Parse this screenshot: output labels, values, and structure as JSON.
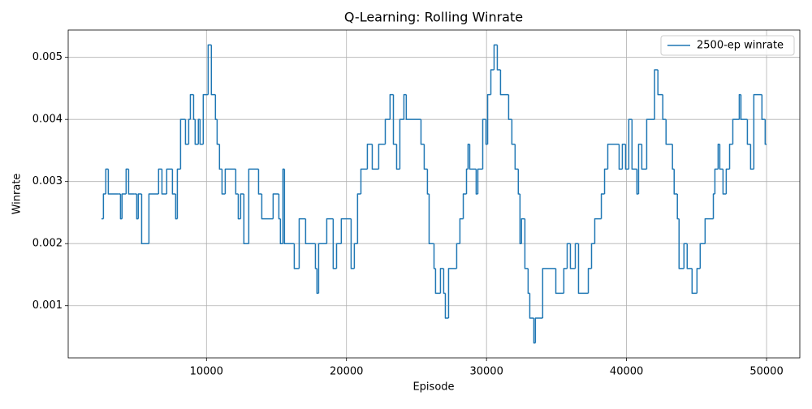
{
  "chart_data": {
    "type": "line",
    "step": "post",
    "title": "Q-Learning: Rolling Winrate",
    "xlabel": "Episode",
    "ylabel": "Winrate",
    "xlim": [
      125,
      52375
    ],
    "ylim": [
      0.00016,
      0.00544
    ],
    "xticks": [
      10000,
      20000,
      30000,
      40000,
      50000
    ],
    "yticks": [
      0.001,
      0.002,
      0.003,
      0.004,
      0.005
    ],
    "grid": true,
    "legend": "upper right",
    "series": [
      {
        "name": "2500-ep winrate",
        "color": "#1f77b4",
        "x": [
          2500,
          2640,
          2810,
          2990,
          3680,
          3860,
          3970,
          4260,
          4440,
          4840,
          5020,
          5130,
          5370,
          5890,
          6580,
          6820,
          7160,
          7570,
          7800,
          7920,
          8150,
          8500,
          8730,
          8850,
          9080,
          9190,
          9420,
          9540,
          9770,
          10120,
          10350,
          10640,
          10760,
          10930,
          11110,
          11340,
          12090,
          12270,
          12440,
          12670,
          13020,
          13720,
          13950,
          14760,
          15170,
          15280,
          15460,
          15570,
          16270,
          16620,
          17080,
          17780,
          17890,
          18010,
          18590,
          19050,
          19290,
          19630,
          20330,
          20560,
          20790,
          21030,
          21490,
          21840,
          22300,
          22770,
          23110,
          23350,
          23580,
          23810,
          24100,
          24270,
          25320,
          25550,
          25780,
          25900,
          26250,
          26360,
          26710,
          26940,
          27060,
          27290,
          27870,
          28100,
          28340,
          28570,
          28680,
          28800,
          29260,
          29380,
          29730,
          29960,
          30080,
          30310,
          30540,
          30770,
          31000,
          31580,
          31810,
          32040,
          32270,
          32390,
          32500,
          32740,
          32970,
          33090,
          33380,
          33490,
          34010,
          34950,
          35520,
          35760,
          35990,
          36340,
          36570,
          37270,
          37500,
          37730,
          38200,
          38430,
          38660,
          39470,
          39700,
          39930,
          40160,
          40390,
          40740,
          40860,
          41090,
          41440,
          42000,
          42240,
          42590,
          42820,
          43280,
          43400,
          43630,
          43750,
          44100,
          44330,
          44680,
          45030,
          45260,
          45610,
          46200,
          46310,
          46540,
          46660,
          46890,
          47120,
          47360,
          47590,
          48050,
          48170,
          48630,
          48860,
          49090,
          49670,
          49900,
          50000
        ],
        "values": [
          0.0024,
          0.0028,
          0.0032,
          0.0028,
          0.0028,
          0.0024,
          0.0028,
          0.0032,
          0.0028,
          0.0028,
          0.0024,
          0.0028,
          0.002,
          0.0028,
          0.0032,
          0.0028,
          0.0032,
          0.0028,
          0.0024,
          0.0032,
          0.004,
          0.0036,
          0.004,
          0.0044,
          0.004,
          0.0036,
          0.004,
          0.0036,
          0.0044,
          0.0052,
          0.0044,
          0.004,
          0.0036,
          0.0032,
          0.0028,
          0.0032,
          0.0028,
          0.0024,
          0.0028,
          0.002,
          0.0032,
          0.0028,
          0.0024,
          0.0028,
          0.0024,
          0.002,
          0.0032,
          0.002,
          0.0016,
          0.0024,
          0.002,
          0.0016,
          0.0012,
          0.002,
          0.0024,
          0.0016,
          0.002,
          0.0024,
          0.0016,
          0.002,
          0.0028,
          0.0032,
          0.0036,
          0.0032,
          0.0036,
          0.004,
          0.0044,
          0.0036,
          0.0032,
          0.004,
          0.0044,
          0.004,
          0.0036,
          0.0032,
          0.0028,
          0.002,
          0.0016,
          0.0012,
          0.0016,
          0.0012,
          0.0008,
          0.0016,
          0.002,
          0.0024,
          0.0028,
          0.0032,
          0.0036,
          0.0032,
          0.0028,
          0.0032,
          0.004,
          0.0036,
          0.0044,
          0.0048,
          0.0052,
          0.0048,
          0.0044,
          0.004,
          0.0036,
          0.0032,
          0.0028,
          0.002,
          0.0024,
          0.0016,
          0.0012,
          0.0008,
          0.0004,
          0.0008,
          0.0016,
          0.0012,
          0.0016,
          0.002,
          0.0016,
          0.002,
          0.0012,
          0.0016,
          0.002,
          0.0024,
          0.0028,
          0.0032,
          0.0036,
          0.0032,
          0.0036,
          0.0032,
          0.004,
          0.0032,
          0.0028,
          0.0036,
          0.0032,
          0.004,
          0.0048,
          0.0044,
          0.004,
          0.0036,
          0.0032,
          0.0028,
          0.0024,
          0.0016,
          0.002,
          0.0016,
          0.0012,
          0.0016,
          0.002,
          0.0024,
          0.0028,
          0.0032,
          0.0036,
          0.0032,
          0.0028,
          0.0032,
          0.0036,
          0.004,
          0.0044,
          0.004,
          0.0036,
          0.0032,
          0.0044,
          0.004,
          0.0036,
          0.0036
        ]
      }
    ]
  }
}
